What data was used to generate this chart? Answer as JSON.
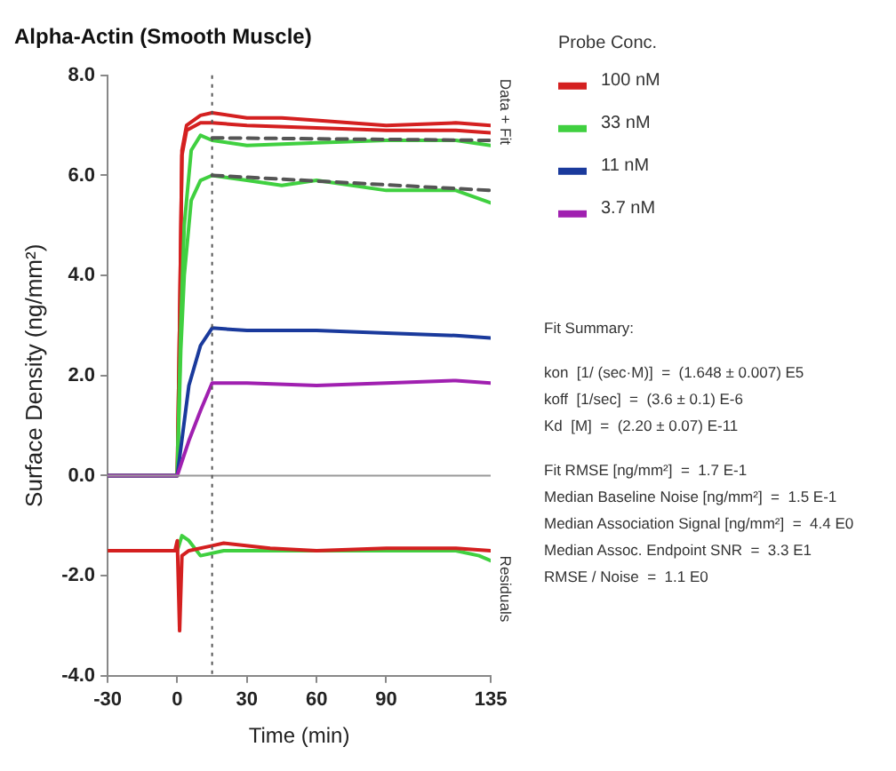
{
  "chart_data": {
    "type": "line",
    "title": "Alpha-Actin (Smooth Muscle)",
    "xlabel": "Time (min)",
    "ylabel": "Surface Density (ng/mm²)",
    "legend_title": "Probe Conc.",
    "legend": "right",
    "grid": false,
    "marker": "none",
    "line_style": "solid",
    "xlim": [
      -30,
      135
    ],
    "xticks": [
      -30,
      0,
      30,
      60,
      90,
      135
    ],
    "ylim": [
      -4,
      8
    ],
    "yticks": [
      {
        "value": -4,
        "label": "-4.0"
      },
      {
        "value": -2,
        "label": "-2.0"
      },
      {
        "value": 0,
        "label": "0.0"
      },
      {
        "value": 2,
        "label": "2.0"
      },
      {
        "value": 4,
        "label": "4.0"
      },
      {
        "value": 6,
        "label": "6.0"
      },
      {
        "value": 8,
        "label": "8.0"
      }
    ],
    "ref_lines": [
      {
        "axis": "y",
        "value": 0,
        "color": "#999999",
        "line_style": "solid"
      },
      {
        "axis": "x",
        "value": 15,
        "color": "#555555",
        "line_style": "dotted"
      }
    ],
    "series": [
      {
        "name": "100 nM",
        "color": "#d42020",
        "x": [
          -30,
          -15,
          0,
          1,
          2,
          4,
          10,
          15,
          30,
          45,
          60,
          90,
          120,
          135
        ],
        "values": [
          0,
          0,
          0,
          3,
          6.5,
          7,
          7.2,
          7.25,
          7.15,
          7.15,
          7.1,
          7,
          7.05,
          7
        ]
      },
      {
        "color": "#d42020",
        "x": [
          -30,
          0,
          1,
          2,
          4,
          10,
          15,
          30,
          60,
          90,
          120,
          135
        ],
        "values": [
          0,
          0,
          3,
          6.4,
          6.9,
          7.05,
          7.05,
          7,
          6.95,
          6.9,
          6.9,
          6.85
        ]
      },
      {
        "name": "33 nM",
        "color": "#40d040",
        "x": [
          -30,
          0,
          1.5,
          3,
          6,
          10,
          15,
          30,
          60,
          90,
          120,
          135
        ],
        "values": [
          0,
          0,
          3,
          5,
          6.5,
          6.8,
          6.7,
          6.6,
          6.65,
          6.7,
          6.7,
          6.6
        ]
      },
      {
        "color": "#40d040",
        "x": [
          -30,
          0,
          1.5,
          3,
          6,
          10,
          15,
          30,
          45,
          60,
          90,
          120,
          135
        ],
        "values": [
          0,
          0,
          2.5,
          4,
          5.5,
          5.9,
          6,
          5.9,
          5.8,
          5.9,
          5.7,
          5.7,
          5.45
        ]
      },
      {
        "name": "11 nM",
        "color": "#1a3a9c",
        "x": [
          -30,
          0,
          5,
          10,
          15,
          30,
          60,
          90,
          120,
          135
        ],
        "values": [
          0,
          0,
          1.8,
          2.6,
          2.95,
          2.9,
          2.9,
          2.85,
          2.8,
          2.75
        ]
      },
      {
        "name": "3.7 nM",
        "color": "#a020b0",
        "x": [
          -30,
          0,
          5,
          10,
          15,
          30,
          60,
          90,
          120,
          135
        ],
        "values": [
          0,
          0,
          0.7,
          1.3,
          1.85,
          1.85,
          1.8,
          1.85,
          1.9,
          1.85
        ]
      },
      {
        "color": "#555555",
        "line_style": "dashed",
        "x": [
          15,
          135
        ],
        "values": [
          6.75,
          6.7
        ]
      },
      {
        "color": "#555555",
        "line_style": "dashed",
        "x": [
          15,
          135
        ],
        "values": [
          6,
          5.7
        ]
      },
      {
        "color": "#40d040",
        "x": [
          -30,
          -10,
          0,
          2,
          5,
          10,
          20,
          30,
          60,
          90,
          120,
          130,
          135
        ],
        "values": [
          -1.5,
          -1.5,
          -1.5,
          -1.2,
          -1.3,
          -1.6,
          -1.5,
          -1.5,
          -1.5,
          -1.5,
          -1.5,
          -1.6,
          -1.7
        ]
      },
      {
        "color": "#d42020",
        "x": [
          -30,
          -10,
          -1,
          0,
          1,
          2,
          5,
          15,
          20,
          40,
          60,
          90,
          120,
          135
        ],
        "values": [
          -1.5,
          -1.5,
          -1.5,
          -1.3,
          -3.1,
          -1.6,
          -1.5,
          -1.4,
          -1.35,
          -1.45,
          -1.5,
          -1.45,
          -1.45,
          -1.5
        ]
      }
    ],
    "annotations": [
      "Data + Fit",
      "Residuals",
      "Fit Summary:",
      "kon  [1/ (sec·M)]  =  (1.648 ± 0.007) E5",
      "koff  [1/sec]  =  (3.6 ± 0.1) E-6",
      "Kd  [M]  =  (2.20 ± 0.07) E-11",
      "Fit RMSE [ng/mm²]  =  1.7 E-1",
      "Median Baseline Noise [ng/mm²]  =  1.5 E-1",
      "Median Association Signal [ng/mm²]  =  4.4 E0",
      "Median Assoc. Endpoint SNR  =  3.3 E1",
      "RMSE / Noise  =  1.1 E0"
    ]
  }
}
